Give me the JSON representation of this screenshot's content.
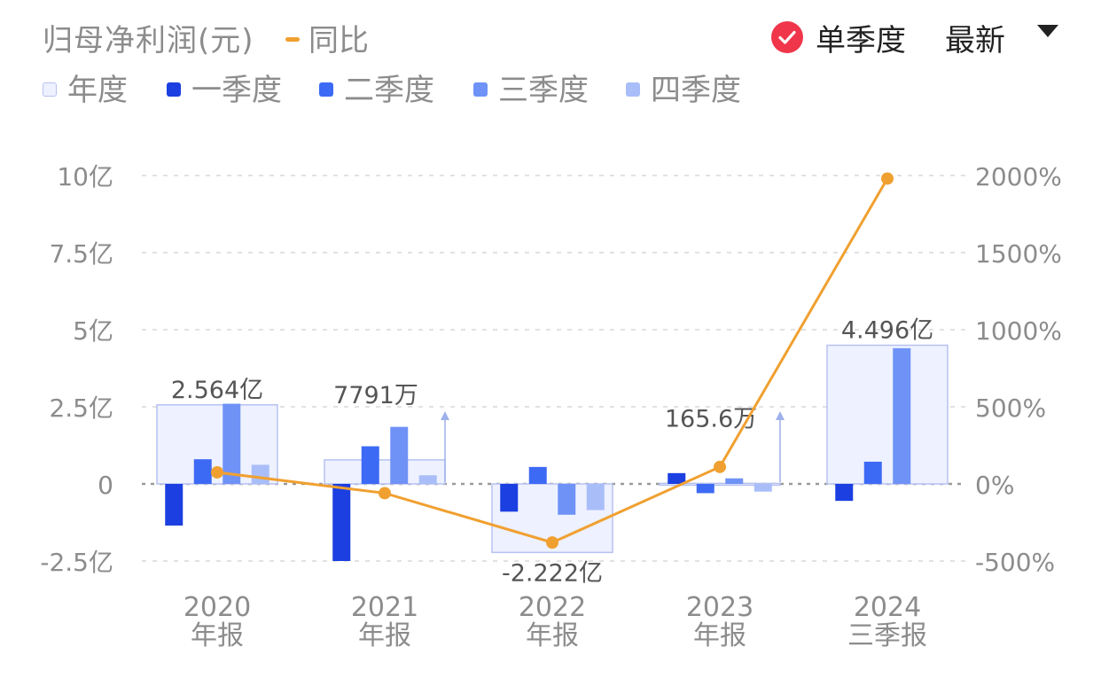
{
  "header": {
    "title": "归母净利润(元)",
    "yoy_label": "同比",
    "mode_label": "单季度",
    "sort_label": "最新"
  },
  "legend": [
    {
      "label": "年度",
      "color": "#EEF1FF",
      "border": "#B7C2F0"
    },
    {
      "label": "一季度",
      "color": "#1B3FE0"
    },
    {
      "label": "二季度",
      "color": "#3D6AF5"
    },
    {
      "label": "三季度",
      "color": "#6F92F7"
    },
    {
      "label": "四季度",
      "color": "#A9BEF9"
    }
  ],
  "colors": {
    "line": "#F0A030",
    "annual_fill": "#EEF1FF",
    "annual_stroke": "#B7C2F0",
    "q1": "#1B3FE0",
    "q2": "#3D6AF5",
    "q3": "#6F92F7",
    "q4": "#A9BEF9"
  },
  "chart_data": {
    "type": "bar",
    "categories": [
      {
        "year": "2020",
        "period": "年报"
      },
      {
        "year": "2021",
        "period": "年报"
      },
      {
        "year": "2022",
        "period": "年报"
      },
      {
        "year": "2023",
        "period": "年报"
      },
      {
        "year": "2024",
        "period": "三季报"
      }
    ],
    "annual": {
      "name": "年度",
      "values": [
        2.564,
        0.7791,
        -2.222,
        0.01656,
        4.496
      ],
      "labels": [
        "2.564亿",
        "7791万",
        "-2.222亿",
        "165.6万",
        "4.496亿"
      ]
    },
    "series": [
      {
        "name": "一季度",
        "values": [
          -1.35,
          -2.5,
          -0.9,
          0.35,
          -0.55
        ]
      },
      {
        "name": "二季度",
        "values": [
          0.8,
          1.22,
          0.55,
          -0.3,
          0.72
        ]
      },
      {
        "name": "三季度",
        "values": [
          2.6,
          1.85,
          -1.0,
          0.18,
          4.4
        ]
      },
      {
        "name": "四季度",
        "values": [
          0.62,
          0.28,
          -0.85,
          -0.25,
          null
        ]
      }
    ],
    "yoy": {
      "name": "同比",
      "values": [
        75,
        -60,
        -380,
        110,
        1980
      ]
    },
    "y_left": {
      "ticks": [
        "10亿",
        "7.5亿",
        "5亿",
        "2.5亿",
        "0",
        "-2.5亿"
      ],
      "range": [
        -2.5,
        10
      ]
    },
    "y_right": {
      "ticks": [
        "2000%",
        "1500%",
        "1000%",
        "500%",
        "0%",
        "-500%"
      ],
      "range": [
        -500,
        2000
      ]
    },
    "grid": true
  }
}
